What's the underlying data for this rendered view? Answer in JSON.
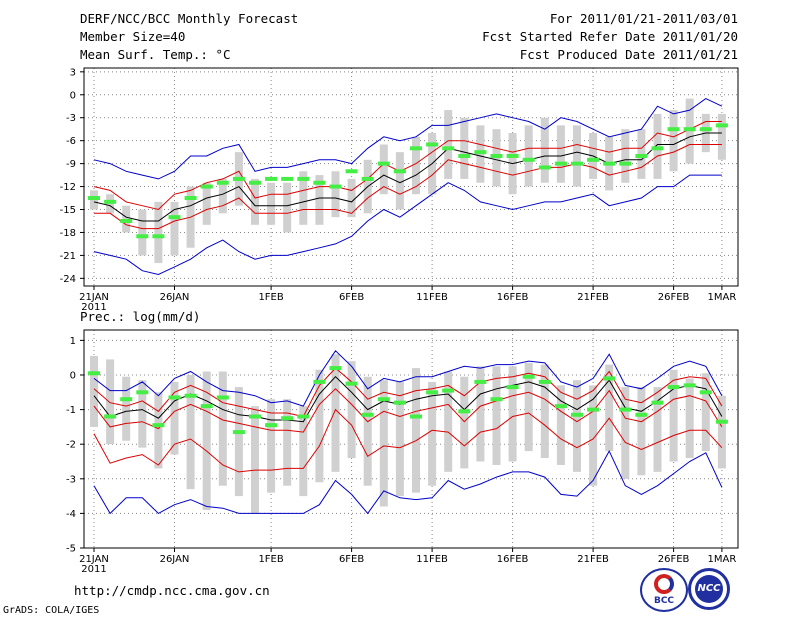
{
  "header": {
    "title": "DERF/NCC/BCC Monthly Forecast",
    "member_size": "Member Size=40",
    "variable": "Mean Surf. Temp.: °C",
    "for_range": "For 2011/01/21-2011/03/01",
    "started": "Fcst Started Refer Date 2011/01/20",
    "produced": "Fcst Produced Date 2011/01/21"
  },
  "footer": {
    "url": "http://cmdp.ncc.cma.gov.cn",
    "grads": "GrADS: COLA/IGES",
    "logo_left": "BCC",
    "logo_right": "NCC"
  },
  "colors": {
    "min_max": "#0000cc",
    "spread": "#dd0000",
    "mean": "#000000",
    "box": "#d0d0d0",
    "obs": "#44ee44"
  },
  "chart_data": [
    {
      "type": "box",
      "name": "temperature",
      "title": "Mean Surf. Temp.: °C",
      "ylim": [
        -25,
        3.5
      ],
      "yticks": [
        3,
        0,
        -3,
        -6,
        -9,
        -12,
        -15,
        -18,
        -21,
        -24
      ],
      "x_tick_labels": [
        "21JAN",
        "26JAN",
        "1FEB",
        "6FEB",
        "11FEB",
        "16FEB",
        "21FEB",
        "26FEB",
        "1MAR"
      ],
      "x_tick_days": [
        0,
        5,
        11,
        16,
        21,
        26,
        31,
        36,
        39
      ],
      "year_label": "2011",
      "series": [
        {
          "name": "max",
          "values": [
            -8.5,
            -9,
            -10,
            -10.5,
            -11,
            -10,
            -8,
            -8,
            -7,
            -6.5,
            -10,
            -9.5,
            -9.5,
            -9,
            -8.5,
            -8.5,
            -9,
            -7,
            -5.5,
            -6,
            -5.5,
            -4,
            -4,
            -3.5,
            -3,
            -2.5,
            -3,
            -3.5,
            -4.5,
            -3,
            -3.5,
            -4.5,
            -5.5,
            -5,
            -4.5,
            -1.5,
            -2.5,
            -2,
            -0.5,
            -1.5
          ]
        },
        {
          "name": "upper",
          "values": [
            -12,
            -12.5,
            -14,
            -14.5,
            -15,
            -13,
            -12.5,
            -11.5,
            -11,
            -10,
            -13.5,
            -13,
            -13,
            -12.5,
            -12,
            -12,
            -12.5,
            -11,
            -9,
            -10,
            -9,
            -7.5,
            -6,
            -6,
            -6.5,
            -7,
            -7.5,
            -7,
            -7,
            -7,
            -6.5,
            -7,
            -7.5,
            -7,
            -7,
            -5,
            -5.5,
            -4.5,
            -3.5,
            -3.5
          ]
        },
        {
          "name": "mean",
          "values": [
            -14,
            -14.5,
            -16,
            -16.5,
            -16.5,
            -15,
            -14.5,
            -13.5,
            -13,
            -12,
            -14.5,
            -14.5,
            -14.5,
            -14,
            -13.5,
            -13.5,
            -14,
            -12,
            -10.5,
            -11.5,
            -10.5,
            -9,
            -7,
            -7.5,
            -8,
            -8.5,
            -9,
            -8.5,
            -8,
            -8,
            -7.5,
            -8,
            -9,
            -8.5,
            -8.5,
            -6.5,
            -6.5,
            -5.5,
            -5,
            -5
          ]
        },
        {
          "name": "lower",
          "values": [
            -15.5,
            -15.5,
            -17,
            -17.5,
            -17.5,
            -16.5,
            -16,
            -15,
            -14.5,
            -13.5,
            -15.5,
            -15.5,
            -15.5,
            -15,
            -15,
            -15,
            -15.5,
            -13.5,
            -12,
            -13,
            -12,
            -10.5,
            -8.5,
            -9,
            -9.5,
            -10,
            -10.5,
            -10,
            -9.5,
            -9.5,
            -9,
            -9.5,
            -10.5,
            -10,
            -9.5,
            -8,
            -7.5,
            -6.5,
            -6.5,
            -6.5
          ]
        },
        {
          "name": "min",
          "values": [
            -20.5,
            -21,
            -21.5,
            -23,
            -23.5,
            -22.5,
            -21.5,
            -20,
            -19,
            -20.5,
            -21.5,
            -21,
            -21,
            -20.5,
            -20,
            -19.5,
            -18.5,
            -16.5,
            -15,
            -16,
            -14.5,
            -13,
            -11.5,
            -12.5,
            -14,
            -14.5,
            -15,
            -14.5,
            -14,
            -14,
            -13.5,
            -13,
            -14.5,
            -14,
            -13.5,
            -12,
            -12,
            -10.5,
            -10.5,
            -10.5
          ]
        }
      ],
      "box_low": [
        -15,
        -15.5,
        -18,
        -21,
        -22,
        -21,
        -20,
        -17,
        -15.5,
        -14.5,
        -17,
        -17,
        -18,
        -17,
        -17,
        -16,
        -16,
        -15.5,
        -13,
        -15,
        -13,
        -13,
        -11,
        -11,
        -11.5,
        -12,
        -13,
        -12,
        -11.5,
        -11.5,
        -12,
        -11,
        -12.5,
        -11.5,
        -11,
        -11,
        -10,
        -9,
        -7.5,
        -8.5
      ],
      "box_high": [
        -12.5,
        -13,
        -14.5,
        -15,
        -14,
        -14,
        -12,
        -11.5,
        -11,
        -7.5,
        -11,
        -11.5,
        -11.5,
        -10,
        -10.5,
        -10,
        -11,
        -8.5,
        -6.5,
        -7.5,
        -5.5,
        -5,
        -2,
        -3,
        -4,
        -4.5,
        -5,
        -4,
        -3,
        -4,
        -4,
        -5,
        -5.5,
        -4.5,
        -4.5,
        -2.5,
        -2,
        -0.5,
        -2.5,
        -2.5
      ],
      "obs": [
        -13.5,
        -14,
        -16.5,
        -18.5,
        -18.5,
        -16,
        -13.5,
        -12,
        -11.5,
        -11,
        -11.5,
        -11,
        -11,
        -11,
        -11.5,
        -12,
        -10,
        -11,
        -9,
        -10,
        -7,
        -6.5,
        -7,
        -8,
        -7.5,
        -8,
        -8,
        -8.5,
        -9.5,
        -9,
        -9,
        -8.5,
        -9,
        -9,
        -8,
        -7,
        -4.5,
        -4.5,
        -4.5,
        -4
      ]
    },
    {
      "type": "box",
      "name": "precipitation",
      "title": "Prec.: log(mm/d)",
      "ylim": [
        -5,
        1.3
      ],
      "yticks": [
        1,
        0,
        -1,
        -2,
        -3,
        -4,
        -5
      ],
      "x_tick_labels": [
        "21JAN",
        "26JAN",
        "1FEB",
        "6FEB",
        "11FEB",
        "16FEB",
        "21FEB",
        "26FEB",
        "1MAR"
      ],
      "x_tick_days": [
        0,
        5,
        11,
        16,
        21,
        26,
        31,
        36,
        39
      ],
      "year_label": "2011",
      "series": [
        {
          "name": "max",
          "values": [
            -0.1,
            -0.45,
            -0.45,
            -0.2,
            -0.6,
            -0.1,
            0.1,
            -0.2,
            -0.45,
            -0.5,
            -0.6,
            -0.8,
            -0.75,
            -0.9,
            0,
            0.7,
            0.25,
            -0.4,
            -0.1,
            -0.2,
            -0.05,
            -0.05,
            0.1,
            0.25,
            0.2,
            0.3,
            0.3,
            0.4,
            0.35,
            -0.2,
            -0.35,
            -0.1,
            0.6,
            -0.3,
            -0.4,
            -0.1,
            0.25,
            0.4,
            0.25,
            -0.6
          ]
        },
        {
          "name": "upper",
          "values": [
            -0.4,
            -0.8,
            -0.9,
            -0.75,
            -1.05,
            -0.5,
            -0.3,
            -0.5,
            -0.8,
            -0.9,
            -1,
            -1.1,
            -1.1,
            -1.2,
            -0.3,
            0.2,
            -0.2,
            -0.7,
            -0.5,
            -0.6,
            -0.45,
            -0.4,
            -0.3,
            -0.6,
            -0.2,
            -0.1,
            -0.05,
            0.05,
            -0.05,
            -0.5,
            -0.7,
            -0.45,
            0.1,
            -0.7,
            -0.8,
            -0.5,
            -0.15,
            -0.05,
            -0.1,
            -0.9
          ]
        },
        {
          "name": "mean",
          "values": [
            -0.6,
            -1.2,
            -1.05,
            -1,
            -1.25,
            -0.75,
            -0.55,
            -0.75,
            -1,
            -1.15,
            -1.2,
            -1.3,
            -1.3,
            -1.35,
            -0.55,
            -0.05,
            -0.5,
            -1,
            -0.75,
            -0.85,
            -0.7,
            -0.6,
            -0.55,
            -1,
            -0.55,
            -0.4,
            -0.3,
            -0.2,
            -0.35,
            -0.75,
            -1,
            -0.7,
            -0.15,
            -0.95,
            -1.05,
            -0.75,
            -0.4,
            -0.3,
            -0.4,
            -1.2
          ]
        },
        {
          "name": "lower",
          "values": [
            -0.9,
            -1.5,
            -1.4,
            -1.35,
            -1.55,
            -1.05,
            -0.85,
            -1.05,
            -1.3,
            -1.4,
            -1.5,
            -1.6,
            -1.6,
            -1.65,
            -0.85,
            -0.4,
            -0.85,
            -1.35,
            -1.05,
            -1.2,
            -1.05,
            -0.95,
            -0.85,
            -1.35,
            -0.9,
            -0.75,
            -0.6,
            -0.5,
            -0.7,
            -1.05,
            -1.35,
            -1.05,
            -0.45,
            -1.25,
            -1.35,
            -1.05,
            -0.7,
            -0.6,
            -0.75,
            -1.5
          ]
        },
        {
          "name": "p10",
          "values": [
            -1.7,
            -2.55,
            -2.4,
            -2.3,
            -2.6,
            -2,
            -1.85,
            -2.2,
            -2.6,
            -2.8,
            -2.75,
            -2.75,
            -2.7,
            -2.7,
            -2.05,
            -1,
            -1.45,
            -2.35,
            -2.05,
            -2.1,
            -1.9,
            -1.6,
            -1.65,
            -2.05,
            -1.65,
            -1.55,
            -1.2,
            -1.1,
            -1.45,
            -1.85,
            -2.1,
            -1.85,
            -1.25,
            -1.95,
            -2.15,
            -1.95,
            -1.75,
            -1.6,
            -1.6,
            -2.1
          ]
        },
        {
          "name": "min",
          "values": [
            -3.2,
            -4,
            -3.55,
            -3.55,
            -4,
            -3.75,
            -3.6,
            -3.8,
            -3.85,
            -4,
            -4,
            -4,
            -4,
            -4,
            -3.75,
            -3.05,
            -3.45,
            -4,
            -3.35,
            -3.55,
            -3.6,
            -3.55,
            -3.05,
            -3.3,
            -3.15,
            -2.95,
            -2.8,
            -2.8,
            -2.95,
            -3.45,
            -3.5,
            -3.05,
            -2.2,
            -3.2,
            -3.45,
            -3.2,
            -2.85,
            -2.5,
            -2.25,
            -3.25
          ]
        }
      ],
      "box_low": [
        -1.5,
        -2,
        -1.9,
        -2.1,
        -2.7,
        -2.3,
        -3.3,
        -3.9,
        -3.2,
        -3.5,
        -4,
        -3.4,
        -3.2,
        -3.5,
        -3.1,
        -2.8,
        -2.4,
        -3.2,
        -3.8,
        -3.5,
        -3.4,
        -3.2,
        -2.8,
        -2.7,
        -2.5,
        -2.6,
        -2.5,
        -2.2,
        -2.4,
        -2.6,
        -2.8,
        -3.2,
        -2.2,
        -3,
        -2.9,
        -2.8,
        -2.5,
        -2.4,
        -2.2,
        -2.7
      ],
      "box_high": [
        0.55,
        0.45,
        -0.05,
        -0.15,
        -0.5,
        -0.2,
        0,
        0.1,
        0.1,
        -0.35,
        -0.9,
        -0.7,
        -0.7,
        -0.9,
        0.15,
        0.6,
        0.4,
        -0.05,
        -0.15,
        -0.2,
        0.2,
        -0.2,
        0.1,
        -0.05,
        0.25,
        0.25,
        0.25,
        0.35,
        0.3,
        -0.3,
        -0.15,
        -0.3,
        0.3,
        -0.35,
        -0.35,
        -0.35,
        0.15,
        -0.1,
        0.05,
        -0.6
      ],
      "obs": [
        0.05,
        -1.2,
        -0.7,
        -0.5,
        -1.45,
        -0.65,
        -0.6,
        -0.9,
        -0.65,
        -1.65,
        -1.2,
        -1.45,
        -1.25,
        -1.2,
        -0.2,
        0.2,
        -0.25,
        -1.15,
        -0.7,
        -0.8,
        -1.2,
        -0.5,
        -0.45,
        -1.05,
        -0.2,
        -0.7,
        -0.35,
        -0.05,
        -0.2,
        -0.9,
        -1.15,
        -1,
        -0.1,
        -1,
        -1.15,
        -0.8,
        -0.35,
        -0.3,
        -0.5,
        -1.35
      ]
    }
  ]
}
